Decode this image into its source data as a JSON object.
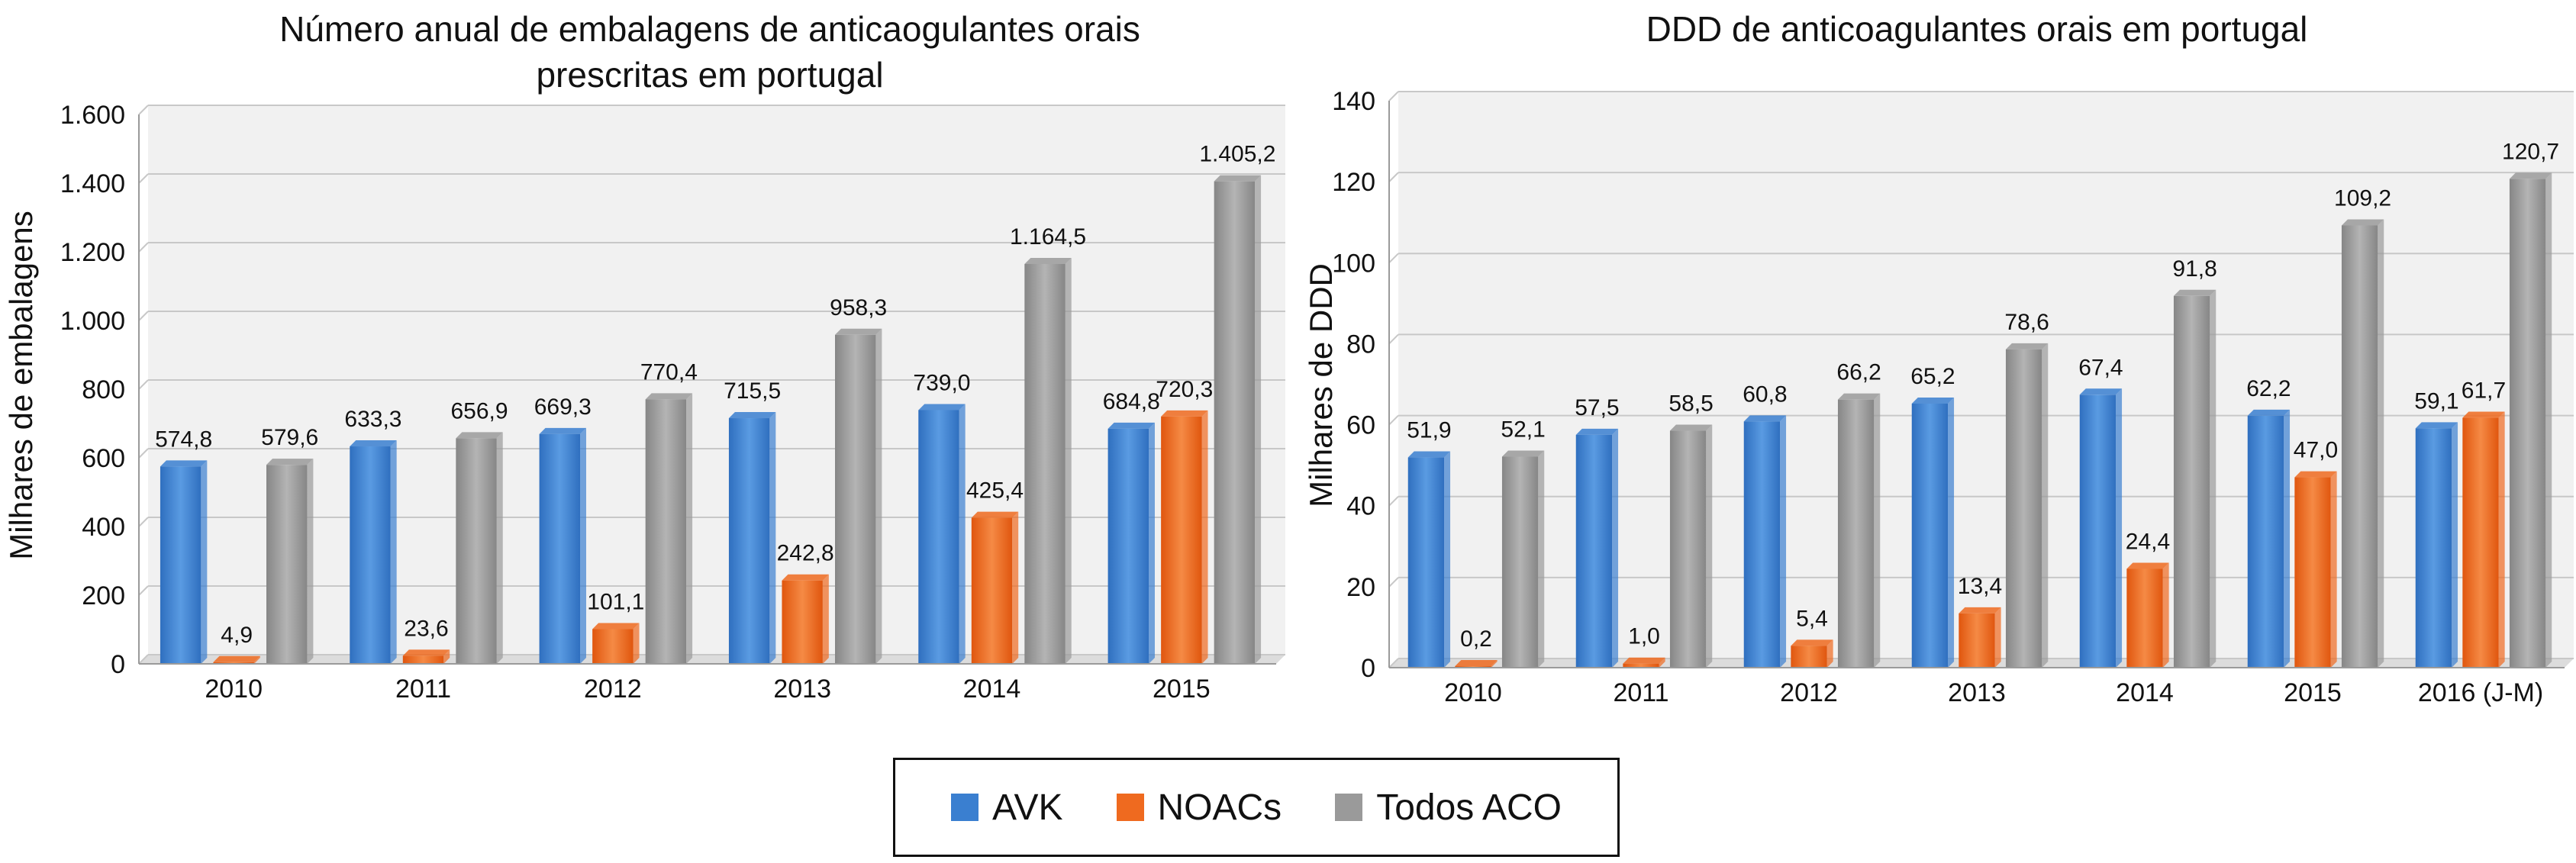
{
  "colors": {
    "avk": "#3a7fd0",
    "noacs": "#ef6a1f",
    "todos": "#9a9a9a"
  },
  "legend": [
    {
      "key": "avk",
      "label": "AVK"
    },
    {
      "key": "noacs",
      "label": "NOACs"
    },
    {
      "key": "todos",
      "label": "Todos ACO"
    }
  ],
  "chart_data": [
    {
      "type": "bar",
      "title": "Número anual de embalagens de anticaogulantes orais prescritas em portugal",
      "title_lines": [
        "Número anual de embalagens de anticaogulantes orais",
        "prescritas em portugal"
      ],
      "xlabel": "",
      "ylabel": "Milhares de embalagens",
      "ylim": [
        0,
        1600
      ],
      "yticks": [
        0,
        200,
        400,
        600,
        800,
        1000,
        1200,
        1400,
        1600
      ],
      "ytick_labels": [
        "0",
        "200",
        "400",
        "600",
        "800",
        "1.000",
        "1.200",
        "1.400",
        "1.600"
      ],
      "grid": true,
      "legend_position": "bottom",
      "categories": [
        "2010",
        "2011",
        "2012",
        "2013",
        "2014",
        "2015"
      ],
      "series": [
        {
          "name": "AVK",
          "key": "avk",
          "values": [
            574.8,
            633.3,
            669.3,
            715.5,
            739.0,
            684.8
          ],
          "labels": [
            "574,8",
            "633,3",
            "669,3",
            "715,5",
            "739,0",
            "684,8"
          ]
        },
        {
          "name": "NOACs",
          "key": "noacs",
          "values": [
            4.9,
            23.6,
            101.1,
            242.8,
            425.4,
            720.3
          ],
          "labels": [
            "4,9",
            "23,6",
            "101,1",
            "242,8",
            "425,4",
            "720,3"
          ]
        },
        {
          "name": "Todos ACO",
          "key": "todos",
          "values": [
            579.6,
            656.9,
            770.4,
            958.3,
            1164.5,
            1405.2
          ],
          "labels": [
            "579,6",
            "656,9",
            "770,4",
            "958,3",
            "1.164,5",
            "1.405,2"
          ]
        }
      ]
    },
    {
      "type": "bar",
      "title": "DDD de anticoagulantes orais em portugal",
      "title_lines": [
        "DDD de anticoagulantes orais em portugal"
      ],
      "xlabel": "",
      "ylabel": "Milhares de DDD",
      "ylim": [
        0,
        140
      ],
      "yticks": [
        0,
        20,
        40,
        60,
        80,
        100,
        120,
        140
      ],
      "ytick_labels": [
        "0",
        "20",
        "40",
        "60",
        "80",
        "100",
        "120",
        "140"
      ],
      "grid": true,
      "legend_position": "bottom",
      "categories": [
        "2010",
        "2011",
        "2012",
        "2013",
        "2014",
        "2015",
        "2016 (J-M)"
      ],
      "series": [
        {
          "name": "AVK",
          "key": "avk",
          "values": [
            51.9,
            57.5,
            60.8,
            65.2,
            67.4,
            62.2,
            59.1
          ],
          "labels": [
            "51,9",
            "57,5",
            "60,8",
            "65,2",
            "67,4",
            "62,2",
            "59,1"
          ]
        },
        {
          "name": "NOACs",
          "key": "noacs",
          "values": [
            0.2,
            1.0,
            5.4,
            13.4,
            24.4,
            47.0,
            61.7
          ],
          "labels": [
            "0,2",
            "1,0",
            "5,4",
            "13,4",
            "24,4",
            "47,0",
            "61,7"
          ]
        },
        {
          "name": "Todos ACO",
          "key": "todos",
          "values": [
            52.1,
            58.5,
            66.2,
            78.6,
            91.8,
            109.2,
            120.7
          ],
          "labels": [
            "52,1",
            "58,5",
            "66,2",
            "78,6",
            "91,8",
            "109,2",
            "120,7"
          ]
        }
      ]
    }
  ]
}
